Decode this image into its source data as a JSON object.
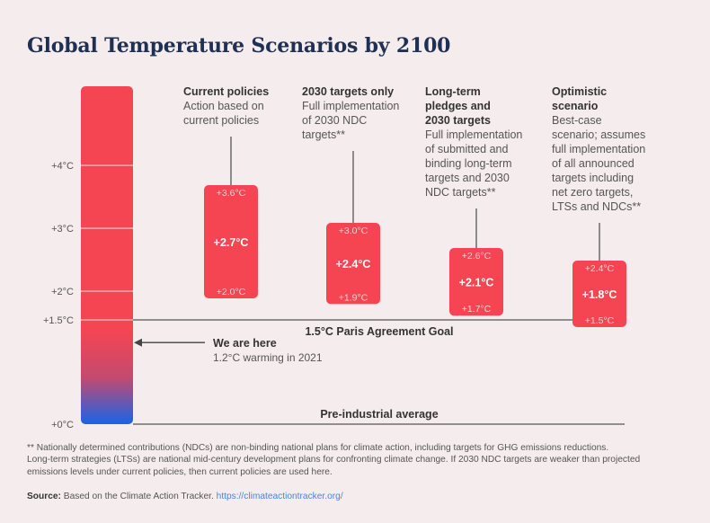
{
  "title": "Global Temperature Scenarios by 2100",
  "colors": {
    "bar_red": "#f64552",
    "bar_blue": "#1a63e8",
    "title": "#1f3052",
    "line": "#555555",
    "background": "#f5ecee",
    "link": "#4a86d8"
  },
  "chart_data": {
    "type": "range-bar",
    "title": "Global Temperature Scenarios by 2100",
    "y_unit": "°C warming above pre-industrial",
    "ylim": [
      0,
      5.3
    ],
    "y_ticks": [
      {
        "value": 4,
        "label": "+4°C"
      },
      {
        "value": 3,
        "label": "+3°C"
      },
      {
        "value": 2,
        "label": "+2°C"
      },
      {
        "value": 1.5,
        "label": "+1.5°C"
      },
      {
        "value": 0,
        "label": "+0°C"
      }
    ],
    "scenarios": [
      {
        "name": "Current policies",
        "description": "Action based on current policies",
        "high": 3.6,
        "mid": 2.7,
        "low": 2.0,
        "high_label": "+3.6°C",
        "mid_label": "+2.7°C",
        "low_label": "+2.0°C"
      },
      {
        "name": "2030 targets only",
        "description": "Full implementation of 2030 NDC targets**",
        "high": 3.0,
        "mid": 2.4,
        "low": 1.9,
        "high_label": "+3.0°C",
        "mid_label": "+2.4°C",
        "low_label": "+1.9°C"
      },
      {
        "name": "Long-term pledges and 2030 targets",
        "description": "Full implementation of submitted and binding long-term targets and 2030 NDC targets**",
        "high": 2.6,
        "mid": 2.1,
        "low": 1.7,
        "high_label": "+2.6°C",
        "mid_label": "+2.1°C",
        "low_label": "+1.7°C"
      },
      {
        "name": "Optimistic scenario",
        "description": "Best-case scenario; assumes full implementation of all announced targets including net zero targets, LTSs and NDCs**",
        "high": 2.4,
        "mid": 1.8,
        "low": 1.5,
        "high_label": "+2.4°C",
        "mid_label": "+1.8°C",
        "low_label": "+1.5°C"
      }
    ],
    "reference_lines": [
      {
        "value": 1.5,
        "label": "1.5°C Paris Agreement Goal"
      },
      {
        "value": 0,
        "label": "Pre-industrial average"
      }
    ],
    "annotations": [
      {
        "value": 1.2,
        "label": "We are here",
        "sublabel": "1.2°C warming in 2021"
      }
    ]
  },
  "scenario_headings": [
    [
      "Current policies"
    ],
    [
      "2030 targets only"
    ],
    [
      "Long-term",
      "pledges and",
      "2030 targets"
    ],
    [
      "Optimistic",
      "scenario"
    ]
  ],
  "scenario_descriptions": [
    [
      "Action based on",
      "current policies"
    ],
    [
      "Full implementation",
      "of 2030 NDC",
      "targets**"
    ],
    [
      "Full implementation",
      "of submitted and",
      "binding long-term",
      "targets and 2030",
      "NDC targets**"
    ],
    [
      "Best-case",
      "scenario; assumes",
      "full implementation",
      "of all announced",
      "targets including",
      "net zero targets,",
      "LTSs and NDCs**"
    ]
  ],
  "footnote": {
    "lines": [
      "** Nationally determined contributions (NDCs) are non-binding national plans for climate action, including targets for GHG emissions reductions.",
      "Long-term strategies (LTSs) are national mid-century development plans for confronting climate change. If 2030 NDC targets are weaker than projected",
      "emissions levels under current policies, then current policies are used here."
    ]
  },
  "source": {
    "label": "Source:",
    "text": " Based on the Climate Action Tracker. ",
    "link": "https://climateactiontracker.org/"
  }
}
